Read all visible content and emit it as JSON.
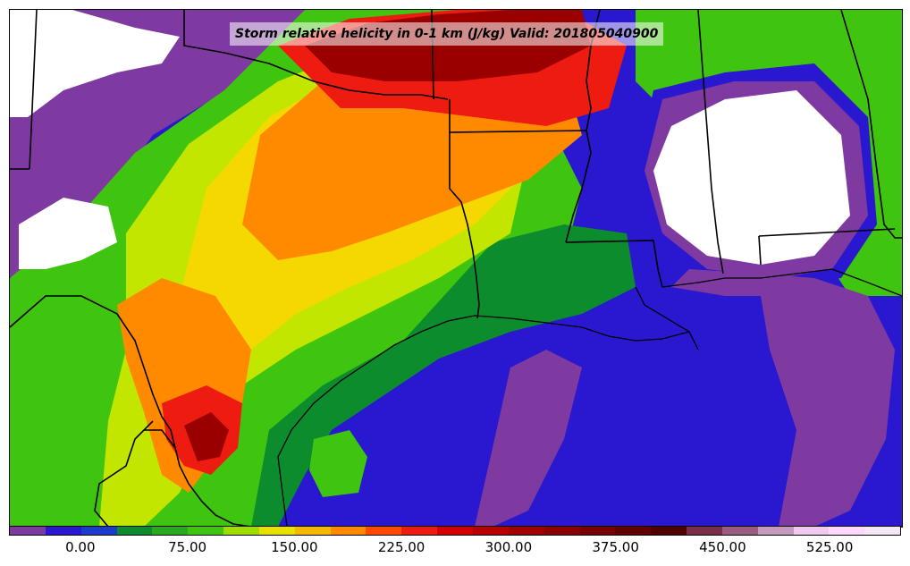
{
  "map": {
    "title": "Storm relative helicity in 0-1 km (J/kg) Valid: 201805040900",
    "fill_colors": {
      "gulf": "#2a17d0",
      "low_purple": "#7e3aa0",
      "dark_green": "#0c8c2c",
      "green": "#3fc40f",
      "yellow_green": "#c3e600",
      "yellow": "#f5d800",
      "orange": "#ff8a00",
      "red": "#ee1b10",
      "dark_red": "#9a0000",
      "white": "#ffffff",
      "border_line": "#000000"
    }
  },
  "colorbar": {
    "colors": [
      "#7e3aa0",
      "#2a17d0",
      "#1a3cc8",
      "#0c8c2c",
      "#2aa81e",
      "#3fc40f",
      "#9fdc00",
      "#e8e000",
      "#f5b800",
      "#ff8a00",
      "#ff4a00",
      "#ee1b10",
      "#d40000",
      "#b80000",
      "#a00000",
      "#8c0000",
      "#780000",
      "#640000",
      "#500000",
      "#7a2e4a",
      "#9a5d80",
      "#c69ac0",
      "#f0c8f0",
      "#ffd8ff",
      "#f4e8f4"
    ],
    "ticks": [
      {
        "label": "0.00",
        "frac": 0.08
      },
      {
        "label": "75.00",
        "frac": 0.2
      },
      {
        "label": "150.00",
        "frac": 0.32
      },
      {
        "label": "225.00",
        "frac": 0.44
      },
      {
        "label": "300.00",
        "frac": 0.56
      },
      {
        "label": "375.00",
        "frac": 0.68
      },
      {
        "label": "450.00",
        "frac": 0.8
      },
      {
        "label": "525.00",
        "frac": 0.92
      }
    ]
  }
}
